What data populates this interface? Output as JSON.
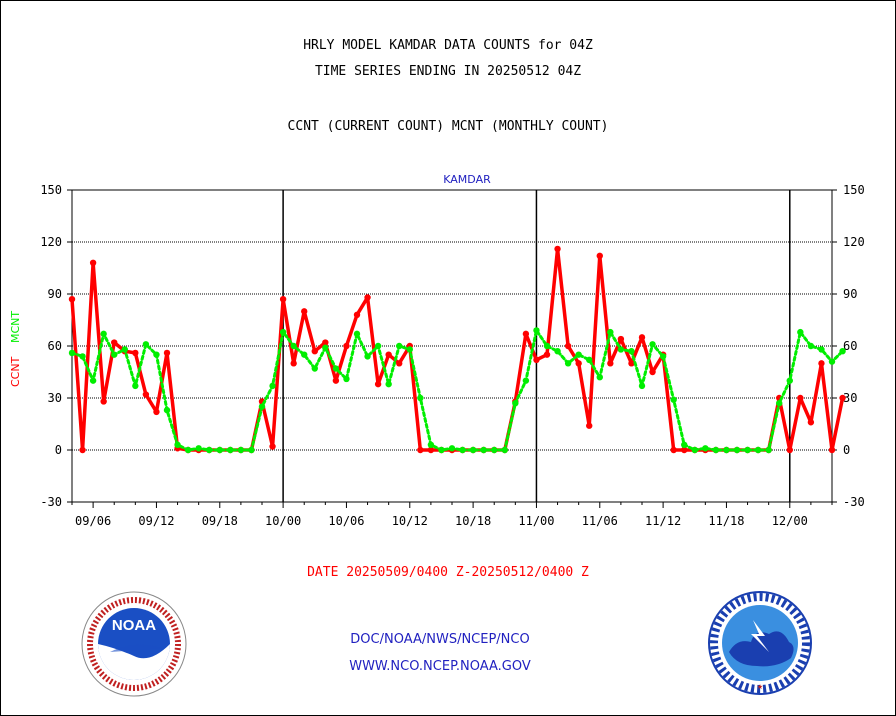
{
  "header": {
    "line1": "HRLY MODEL KAMDAR DATA COUNTS for 04Z",
    "line2": "TIME SERIES ENDING IN 20250512 04Z",
    "line3": "CCNT (CURRENT COUNT) MCNT (MONTHLY COUNT)"
  },
  "footer": {
    "date_range": "DATE 20250509/0400 Z-20250512/0400 Z",
    "org": "DOC/NOAA/NWS/NCEP/NCO",
    "url": "WWW.NCO.NCEP.NOAA.GOV"
  },
  "logos": {
    "left": "NOAA",
    "right": "NATIONAL WEATHER SERVICE"
  },
  "colors": {
    "ccnt": "#ff0000",
    "mcnt": "#00ee00",
    "station_label": "#2121c0",
    "axis": "#000000"
  },
  "chart_data": {
    "type": "line",
    "title": "KAMDAR",
    "ylabel_left": [
      "CCNT",
      "MCNT"
    ],
    "ylim": [
      -30,
      150
    ],
    "yticks": [
      150,
      120,
      90,
      60,
      30,
      0,
      -30
    ],
    "x_range": [
      0,
      72
    ],
    "day_dividers": [
      20,
      44,
      68
    ],
    "xtick_labels": [
      {
        "x": 2,
        "label": "09/06"
      },
      {
        "x": 8,
        "label": "09/12"
      },
      {
        "x": 14,
        "label": "09/18"
      },
      {
        "x": 20,
        "label": "10/00"
      },
      {
        "x": 26,
        "label": "10/06"
      },
      {
        "x": 32,
        "label": "10/12"
      },
      {
        "x": 38,
        "label": "10/18"
      },
      {
        "x": 44,
        "label": "11/00"
      },
      {
        "x": 50,
        "label": "11/06"
      },
      {
        "x": 56,
        "label": "11/12"
      },
      {
        "x": 62,
        "label": "11/18"
      },
      {
        "x": 68,
        "label": "12/00"
      }
    ],
    "grid": "horizontal dashed",
    "series": [
      {
        "name": "CCNT",
        "color": "#ff0000",
        "style": "solid",
        "values": [
          87,
          0,
          108,
          28,
          62,
          57,
          56,
          32,
          22,
          56,
          1,
          0,
          0,
          0,
          0,
          0,
          0,
          0,
          28,
          2,
          87,
          50,
          80,
          57,
          62,
          40,
          60,
          78,
          88,
          38,
          55,
          50,
          60,
          0,
          0,
          0,
          0,
          0,
          0,
          0,
          0,
          0,
          28,
          67,
          52,
          55,
          116,
          60,
          50,
          14,
          112,
          50,
          64,
          50,
          65,
          45,
          55,
          0,
          0,
          0,
          0,
          0,
          0,
          0,
          0,
          0,
          0,
          30,
          0,
          30,
          16,
          50,
          0,
          30
        ]
      },
      {
        "name": "MCNT",
        "color": "#00ee00",
        "style": "dotted",
        "values": [
          56,
          54,
          40,
          67,
          55,
          58,
          37,
          61,
          55,
          23,
          3,
          0,
          1,
          0,
          0,
          0,
          0,
          0,
          25,
          37,
          68,
          60,
          55,
          47,
          59,
          47,
          41,
          67,
          54,
          60,
          38,
          60,
          58,
          30,
          3,
          0,
          1,
          0,
          0,
          0,
          0,
          0,
          27,
          40,
          69,
          60,
          57,
          50,
          55,
          52,
          42,
          68,
          58,
          57,
          37,
          61,
          54,
          29,
          3,
          0,
          1,
          0,
          0,
          0,
          0,
          0,
          0,
          27,
          40,
          68,
          60,
          58,
          51,
          57
        ]
      }
    ]
  }
}
